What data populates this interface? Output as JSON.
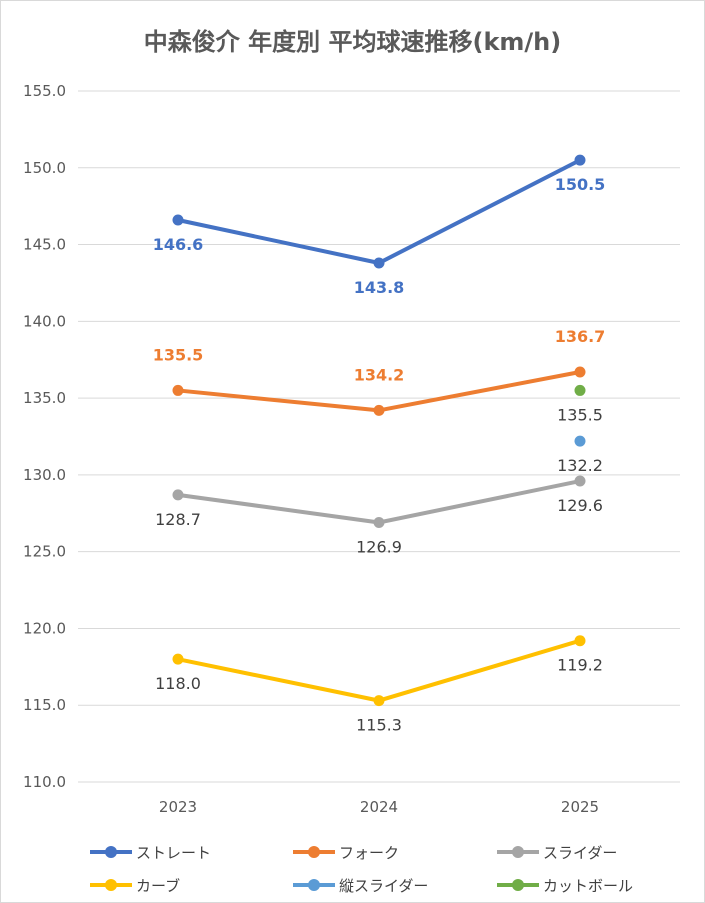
{
  "chart_data": {
    "type": "line",
    "title": "中森俊介 年度別 平均球速推移(km/h)",
    "categories": [
      "2023",
      "2024",
      "2025"
    ],
    "ylim": [
      110.0,
      155.0
    ],
    "yticks": [
      "110.0",
      "115.0",
      "120.0",
      "125.0",
      "130.0",
      "135.0",
      "140.0",
      "145.0",
      "150.0",
      "155.0"
    ],
    "grid": true,
    "legend_position": "bottom",
    "series": [
      {
        "name": "ストレート",
        "color": "#4472C4",
        "values": [
          146.6,
          143.8,
          150.5
        ],
        "labels": [
          "146.6",
          "143.8",
          "150.5"
        ],
        "label_color": "#4472C4",
        "label_bold": true
      },
      {
        "name": "フォーク",
        "color": "#ED7D31",
        "values": [
          135.5,
          134.2,
          136.7
        ],
        "labels": [
          "135.5",
          "134.2",
          "136.7"
        ],
        "label_color": "#ED7D31",
        "label_bold": true
      },
      {
        "name": "スライダー",
        "color": "#A5A5A5",
        "values": [
          128.7,
          126.9,
          129.6
        ],
        "labels": [
          "128.7",
          "126.9",
          "129.6"
        ],
        "label_color": "#404040",
        "label_bold": false
      },
      {
        "name": "カーブ",
        "color": "#FFC000",
        "values": [
          118.0,
          115.3,
          119.2
        ],
        "labels": [
          "118.0",
          "115.3",
          "119.2"
        ],
        "label_color": "#404040",
        "label_bold": false
      },
      {
        "name": "縦スライダー",
        "color": "#5B9BD5",
        "values": [
          null,
          null,
          132.2
        ],
        "labels": [
          null,
          null,
          "132.2"
        ],
        "label_color": "#404040",
        "label_bold": false
      },
      {
        "name": "カットボール",
        "color": "#70AD47",
        "values": [
          null,
          null,
          135.5
        ],
        "labels": [
          null,
          null,
          "135.5"
        ],
        "label_color": "#404040",
        "label_bold": false
      }
    ]
  }
}
